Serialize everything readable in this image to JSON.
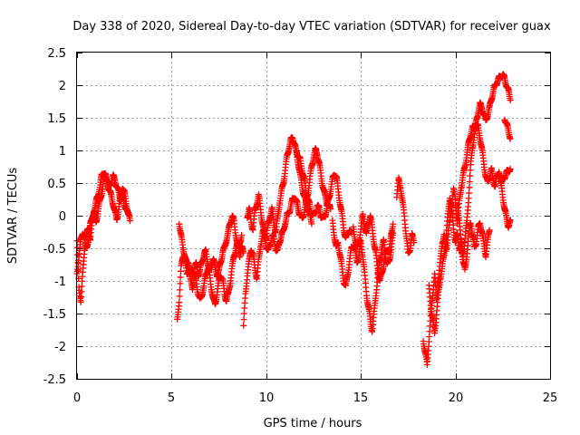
{
  "chart_data": {
    "type": "scatter",
    "title": "Day 338 of 2020, Sidereal Day-to-day VTEC variation (SDTVAR) for receiver guax",
    "xlabel": "GPS time / hours",
    "ylabel": "SDTVAR / TECUs",
    "xlim": [
      0,
      25
    ],
    "ylim": [
      -2.5,
      2.5
    ],
    "xticks": [
      0,
      5,
      10,
      15,
      20,
      25
    ],
    "xtick_labels": [
      "0",
      "5",
      "10",
      "15",
      "20",
      "25"
    ],
    "yticks": [
      -2.5,
      -2,
      -1.5,
      -1,
      -0.5,
      0,
      0.5,
      1,
      1.5,
      2,
      2.5
    ],
    "ytick_labels": [
      "-2.5",
      "-2",
      "-1.5",
      "-1",
      "-0.5",
      "0",
      "0.5",
      "1",
      "1.5",
      "2",
      "2.5"
    ],
    "grid": true,
    "marker": "+",
    "color": "#ff0000",
    "series": [
      {
        "name": "SDTVAR",
        "segments": [
          {
            "x": [
              0.0,
              0.1,
              0.2,
              0.3,
              0.4,
              0.5,
              0.6,
              0.7,
              0.8,
              0.9,
              1.0,
              1.1,
              1.2,
              1.3,
              1.4,
              1.5,
              1.6,
              1.7,
              1.8,
              1.9,
              2.0,
              2.1,
              2.2,
              2.3,
              2.4,
              2.5,
              2.6,
              2.7,
              2.8
            ],
            "y": [
              -0.4,
              -1.1,
              -1.3,
              -0.9,
              -0.5,
              -0.3,
              -0.2,
              -0.35,
              -0.1,
              0.1,
              0.2,
              0.3,
              0.45,
              0.6,
              0.68,
              0.62,
              0.5,
              0.4,
              0.3,
              0.2,
              0.05,
              -0.05,
              0.1,
              0.3,
              0.45,
              0.35,
              0.2,
              0.05,
              -0.1
            ]
          },
          {
            "x": [
              0.0,
              0.1,
              0.2,
              0.3,
              0.4,
              0.5,
              0.6,
              0.7,
              0.8,
              0.9,
              1.0,
              1.1,
              1.2,
              1.3,
              1.4,
              1.5,
              1.6,
              1.7,
              1.8,
              1.9,
              2.0,
              2.1,
              2.2,
              2.3,
              2.4,
              2.5,
              2.6,
              2.7
            ],
            "y": [
              -0.9,
              -0.6,
              -0.4,
              -0.25,
              -0.3,
              -0.5,
              -0.35,
              -0.15,
              0.0,
              0.05,
              -0.1,
              0.05,
              0.2,
              0.35,
              0.5,
              0.6,
              0.55,
              0.45,
              0.5,
              0.6,
              0.55,
              0.45,
              0.35,
              0.25,
              0.3,
              0.2,
              0.1,
              0.0
            ]
          },
          {
            "x": [
              5.3,
              5.4,
              5.5,
              5.6,
              5.7,
              5.8,
              5.9,
              6.0,
              6.1,
              6.2,
              6.3,
              6.4,
              6.5,
              6.6,
              6.7,
              6.8,
              6.9,
              7.0,
              7.1,
              7.2,
              7.3,
              7.4,
              7.5,
              7.6,
              7.7,
              7.8,
              7.9,
              8.0,
              8.1,
              8.2,
              8.3,
              8.4,
              8.5,
              8.6,
              8.7,
              8.8
            ],
            "y": [
              -1.6,
              -1.3,
              -0.8,
              -0.6,
              -0.7,
              -0.9,
              -0.8,
              -1.0,
              -1.1,
              -0.9,
              -1.0,
              -1.2,
              -1.3,
              -1.2,
              -1.1,
              -0.9,
              -0.8,
              -0.9,
              -1.1,
              -1.3,
              -1.35,
              -1.2,
              -1.0,
              -0.9,
              -1.0,
              -1.2,
              -1.3,
              -1.2,
              -1.0,
              -0.8,
              -0.6,
              -0.5,
              -0.45,
              -0.6,
              -0.5,
              -0.55
            ]
          },
          {
            "x": [
              5.4,
              5.5,
              5.6,
              5.7,
              5.8,
              5.9,
              6.0,
              6.1,
              6.2,
              6.3,
              6.4,
              6.5,
              6.6,
              6.7,
              6.8,
              6.9,
              7.0,
              7.1,
              7.2,
              7.3,
              7.4,
              7.5,
              7.6,
              7.7,
              7.8,
              7.9,
              8.0,
              8.1,
              8.2,
              8.3,
              8.4,
              8.5,
              8.6,
              8.7
            ],
            "y": [
              -0.1,
              -0.3,
              -0.5,
              -0.6,
              -0.75,
              -0.7,
              -0.85,
              -0.95,
              -0.8,
              -0.75,
              -0.9,
              -0.85,
              -0.7,
              -0.6,
              -0.55,
              -0.7,
              -0.85,
              -0.75,
              -0.65,
              -0.8,
              -0.9,
              -0.85,
              -0.7,
              -0.55,
              -0.5,
              -0.35,
              -0.25,
              -0.1,
              0.0,
              -0.1,
              -0.3,
              -0.5,
              -0.4,
              -0.3
            ]
          },
          {
            "x": [
              8.8,
              8.9,
              9.0,
              9.1,
              9.2,
              9.3,
              9.4,
              9.5,
              9.6,
              9.7,
              9.8,
              9.9,
              10.0,
              10.1,
              10.2,
              10.3,
              10.4,
              10.5,
              10.6,
              10.7,
              10.8,
              10.9,
              11.0,
              11.1,
              11.2,
              11.3,
              11.4,
              11.5,
              11.6,
              11.7,
              11.8,
              11.9,
              12.0,
              12.1,
              12.2,
              12.3,
              12.4
            ],
            "y": [
              -1.7,
              -1.2,
              -0.9,
              -0.7,
              -0.5,
              -0.6,
              -0.8,
              -0.95,
              -0.7,
              -0.45,
              -0.3,
              -0.2,
              -0.35,
              -0.15,
              0.0,
              0.1,
              -0.1,
              -0.25,
              -0.05,
              0.2,
              0.35,
              0.5,
              0.7,
              0.9,
              1.05,
              1.15,
              1.2,
              1.1,
              0.95,
              0.8,
              0.6,
              0.45,
              0.3,
              0.2,
              0.1,
              0.0,
              -0.1
            ]
          },
          {
            "x": [
              9.0,
              9.1,
              9.2,
              9.3,
              9.4,
              9.5,
              9.6,
              9.7,
              9.8,
              9.9,
              10.0,
              10.1,
              10.2,
              10.3,
              10.4,
              10.5,
              10.6,
              10.7,
              10.8,
              10.9,
              11.0,
              11.1,
              11.2,
              11.3,
              11.4,
              11.5,
              11.6,
              11.7,
              11.8,
              11.9,
              12.0,
              12.1,
              12.2,
              12.3,
              12.4,
              12.5,
              12.6,
              12.7,
              12.8,
              12.9,
              13.0,
              13.1,
              13.2,
              13.3,
              13.4
            ],
            "y": [
              0.0,
              0.1,
              -0.1,
              -0.2,
              0.05,
              0.2,
              0.3,
              0.1,
              -0.1,
              -0.3,
              -0.45,
              -0.55,
              -0.45,
              -0.3,
              -0.35,
              -0.5,
              -0.55,
              -0.4,
              -0.3,
              -0.25,
              -0.1,
              0.0,
              0.05,
              0.15,
              0.25,
              0.3,
              0.2,
              0.1,
              0.0,
              -0.05,
              0.05,
              0.2,
              0.35,
              0.55,
              0.75,
              0.9,
              1.0,
              0.95,
              0.8,
              0.6,
              0.45,
              0.3,
              0.2,
              0.15,
              0.1
            ]
          },
          {
            "x": [
              11.6,
              11.7,
              11.8,
              11.9,
              12.0,
              12.1,
              12.2,
              12.3,
              12.4,
              12.5,
              12.6,
              12.7,
              12.8,
              12.9,
              13.0,
              13.1,
              13.2,
              13.3,
              13.4,
              13.5,
              13.6,
              13.7,
              13.8,
              13.9,
              14.0,
              14.1,
              14.2,
              14.3,
              14.4,
              14.5
            ],
            "y": [
              1.0,
              0.9,
              0.85,
              0.7,
              0.55,
              0.4,
              0.25,
              0.15,
              0.05,
              0.0,
              0.05,
              0.15,
              0.1,
              0.0,
              -0.05,
              0.0,
              0.1,
              0.25,
              0.4,
              0.55,
              0.65,
              0.6,
              0.4,
              0.2,
              0.0,
              -0.2,
              -0.35,
              -0.3,
              -0.2,
              -0.3
            ]
          },
          {
            "x": [
              13.5,
              13.6,
              13.7,
              13.8,
              13.9,
              14.0,
              14.1,
              14.2,
              14.3,
              14.4,
              14.5,
              14.6,
              14.7,
              14.8,
              14.9,
              15.0,
              15.1,
              15.2,
              15.3,
              15.4,
              15.5,
              15.6,
              15.7,
              15.8,
              15.9,
              16.0,
              16.1,
              16.2,
              16.3,
              16.4,
              16.5,
              16.6,
              16.7
            ],
            "y": [
              -0.1,
              -0.3,
              -0.5,
              -0.4,
              -0.6,
              -0.8,
              -1.0,
              -1.1,
              -0.9,
              -0.7,
              -0.5,
              -0.45,
              -0.55,
              -0.7,
              -0.6,
              -0.4,
              -0.6,
              -0.9,
              -1.2,
              -1.4,
              -1.6,
              -1.75,
              -1.5,
              -1.2,
              -0.9,
              -0.7,
              -0.5,
              -0.4,
              -0.6,
              -0.75,
              -0.7,
              -0.5,
              -0.3
            ]
          },
          {
            "x": [
              14.6,
              14.7,
              14.8,
              14.9,
              15.0,
              15.1,
              15.2,
              15.3,
              15.4,
              15.5,
              15.6,
              15.7,
              15.8,
              15.9,
              16.0,
              16.1,
              16.2,
              16.3,
              16.4,
              16.5,
              16.6,
              16.7
            ],
            "y": [
              -0.2,
              -0.35,
              -0.5,
              -0.4,
              -0.2,
              0.0,
              -0.15,
              -0.3,
              -0.1,
              0.0,
              -0.2,
              -0.4,
              -0.6,
              -0.85,
              -1.0,
              -0.9,
              -0.75,
              -0.6,
              -0.5,
              -0.55,
              -0.3,
              -0.1
            ]
          },
          {
            "x": [
              16.9,
              17.0,
              17.1,
              17.2,
              17.3,
              17.4,
              17.5,
              17.6,
              17.7,
              17.8
            ],
            "y": [
              0.3,
              0.55,
              0.45,
              0.2,
              0.0,
              -0.3,
              -0.6,
              -0.5,
              -0.3,
              -0.4
            ]
          },
          {
            "x": [
              18.3,
              18.4,
              18.5,
              18.6,
              18.7,
              18.8,
              18.9,
              19.0,
              19.1,
              19.2,
              19.3,
              19.4,
              19.5,
              19.6,
              19.7,
              19.8,
              19.9,
              20.0,
              20.1,
              20.2,
              20.3,
              20.4,
              20.5,
              20.6,
              20.7,
              20.8,
              20.9,
              21.0,
              21.1,
              21.2,
              21.3,
              21.4,
              21.5,
              21.6,
              21.7,
              21.8,
              21.9,
              22.0,
              22.1,
              22.2,
              22.3,
              22.4,
              22.5,
              22.6,
              22.7,
              22.8,
              22.9
            ],
            "y": [
              -1.9,
              -2.1,
              -2.3,
              -1.9,
              -1.5,
              -1.2,
              -0.9,
              -1.3,
              -1.0,
              -0.7,
              -0.4,
              -0.3,
              -0.55,
              -0.3,
              -0.1,
              0.15,
              0.4,
              0.2,
              -0.1,
              0.2,
              0.45,
              0.6,
              0.75,
              0.95,
              1.1,
              1.25,
              1.35,
              1.3,
              1.4,
              1.35,
              1.2,
              1.0,
              0.8,
              0.6,
              0.5,
              0.6,
              0.7,
              0.55,
              0.45,
              0.6,
              0.7,
              0.5,
              0.3,
              0.1,
              -0.05,
              -0.15,
              -0.1
            ]
          },
          {
            "x": [
              18.6,
              18.7,
              18.8,
              18.9,
              19.0,
              19.1,
              19.2,
              19.3,
              19.4,
              19.5,
              19.6,
              19.7,
              19.8,
              19.9,
              20.0,
              20.1,
              20.2,
              20.3,
              20.4,
              20.5,
              20.6,
              20.7,
              20.8,
              20.9,
              21.0,
              21.1,
              21.2,
              21.3,
              21.4,
              21.5,
              21.6,
              21.7,
              21.8,
              21.9,
              22.0,
              22.1,
              22.2,
              22.3,
              22.4,
              22.5,
              22.6,
              22.7,
              22.8,
              22.9
            ],
            "y": [
              -1.1,
              -1.4,
              -1.6,
              -1.8,
              -1.5,
              -1.2,
              -0.95,
              -0.8,
              -0.6,
              -0.35,
              0.0,
              0.3,
              0.1,
              -0.2,
              -0.4,
              -0.3,
              -0.5,
              -0.4,
              -0.6,
              -0.35,
              -0.1,
              0.3,
              0.75,
              1.05,
              1.25,
              1.45,
              1.6,
              1.7,
              1.65,
              1.55,
              1.45,
              1.55,
              1.65,
              1.8,
              1.9,
              2.0,
              2.05,
              2.1,
              2.15,
              2.15,
              2.1,
              2.0,
              1.9,
              1.8
            ]
          },
          {
            "x": [
              20.1,
              20.2,
              20.3,
              20.4,
              20.5,
              20.6,
              20.7,
              20.8,
              20.9,
              21.0,
              21.1,
              21.2,
              21.3,
              21.4,
              21.5,
              21.6,
              21.7,
              21.8
            ],
            "y": [
              0.2,
              -0.1,
              -0.4,
              -0.7,
              -0.85,
              -0.6,
              -0.3,
              -0.1,
              -0.3,
              -0.5,
              -0.4,
              -0.2,
              -0.1,
              -0.25,
              -0.45,
              -0.6,
              -0.4,
              -0.2
            ]
          },
          {
            "x": [
              22.6,
              22.7,
              22.8,
              22.9
            ],
            "y": [
              1.5,
              1.4,
              1.3,
              1.2
            ]
          },
          {
            "x": [
              22.4,
              22.5,
              22.6,
              22.7,
              22.8,
              22.9
            ],
            "y": [
              0.5,
              0.55,
              0.6,
              0.65,
              0.7,
              0.72
            ]
          }
        ]
      }
    ]
  }
}
